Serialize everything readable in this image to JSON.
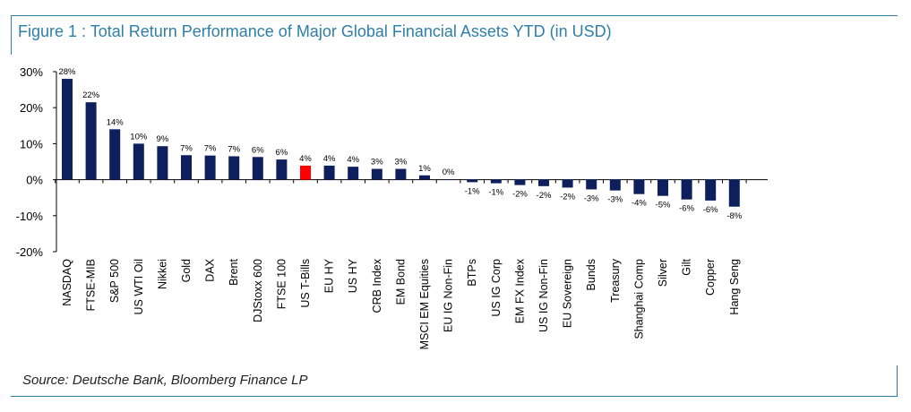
{
  "title": "Figure 1 : Total Return Performance of Major Global Financial Assets YTD (in USD)",
  "source": "Source: Deutsche Bank, Bloomberg Finance LP",
  "colors": {
    "bar": "#0d1f5c",
    "highlight": "#ff0000",
    "frame": "#2e7fa8"
  },
  "chart_data": {
    "type": "bar",
    "ylim": [
      -20,
      30
    ],
    "yticks": [
      30,
      20,
      10,
      0,
      -10,
      -20
    ],
    "ytick_labels": [
      "30%",
      "20%",
      "10%",
      "0%",
      "-10%",
      "-20%"
    ],
    "highlight_category": "US T-Bills",
    "categories": [
      "NASDAQ",
      "FTSE-MIB",
      "S&P 500",
      "US WTI Oil",
      "Nikkei",
      "Gold",
      "DAX",
      "Brent",
      "DJStoxx 600",
      "FTSE 100",
      "US T-Bills",
      "EU HY",
      "US HY",
      "CRB Index",
      "EM Bond",
      "MSCI EM Equities",
      "EU IG Non-Fin",
      "BTPs",
      "US IG Corp",
      "EM FX Index",
      "US IG Non-Fin",
      "EU Sovereign",
      "Bunds",
      "Treasury",
      "Shanghai Comp",
      "Silver",
      "Gilt",
      "Copper",
      "Hang Seng"
    ],
    "values": [
      28,
      21.5,
      14,
      10,
      9.3,
      6.8,
      6.7,
      6.5,
      6.3,
      5.6,
      3.9,
      3.9,
      3.6,
      3.0,
      3.0,
      1.2,
      0.1,
      -0.7,
      -1.0,
      -1.5,
      -1.8,
      -2.2,
      -2.7,
      -3.0,
      -4.0,
      -4.5,
      -5.5,
      -5.8,
      -7.5
    ],
    "data_labels": [
      "28%",
      "22%",
      "14%",
      "10%",
      "9%",
      "7%",
      "7%",
      "7%",
      "6%",
      "6%",
      "4%",
      "4%",
      "4%",
      "3%",
      "3%",
      "1%",
      "0%",
      "-1%",
      "-1%",
      "-2%",
      "-2%",
      "-2%",
      "-3%",
      "-3%",
      "-4%",
      "-5%",
      "-6%",
      "-6%",
      "-8%"
    ]
  }
}
